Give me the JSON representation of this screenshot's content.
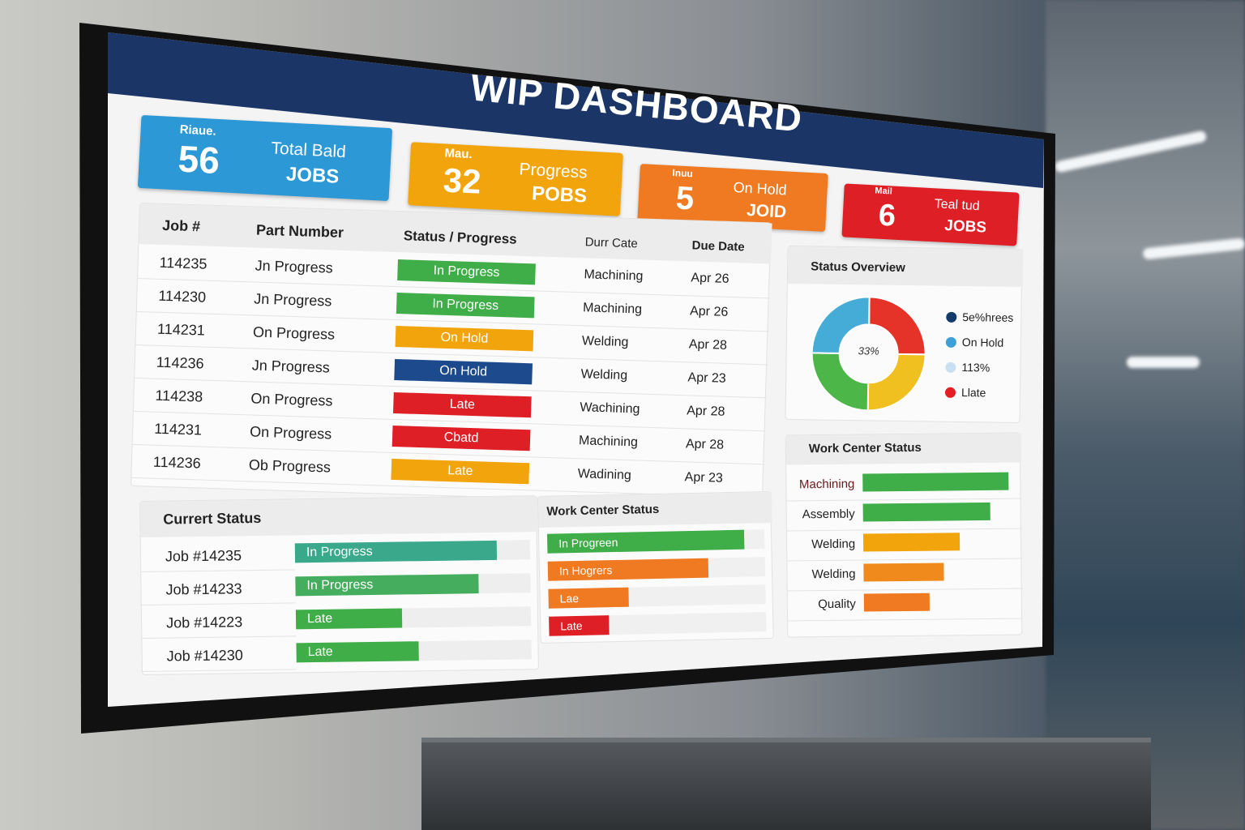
{
  "title": "WIP DASHBOARD",
  "kpis": [
    {
      "small": "Riaue.",
      "value": "56",
      "line1": "Total Bald",
      "line2": "JOBS",
      "color": "#2d98d6"
    },
    {
      "small": "Mau.",
      "value": "32",
      "line1": "Progress",
      "line2": "POBS",
      "color": "#f2a40c"
    },
    {
      "small": "Inuu",
      "value": "5",
      "line1": "On Hold",
      "line2": "JOID",
      "color": "#f07a22"
    },
    {
      "small": "Mail",
      "value": "6",
      "line1": "Teal tud",
      "line2": "JOBS",
      "color": "#df1f26"
    }
  ],
  "table": {
    "headers": [
      "Job #",
      "Part Number",
      "Status / Progress",
      "Durr Cate",
      "Due Date"
    ],
    "rows": [
      {
        "job": "114235",
        "part": "Jn Progress",
        "status": "In Progress",
        "color": "#3fae49",
        "center": "Machining",
        "due": "Apr 26"
      },
      {
        "job": "114230",
        "part": "Jn Progress",
        "status": "In Progress",
        "color": "#3fae49",
        "center": "Machining",
        "due": "Apr 26"
      },
      {
        "job": "114231",
        "part": "On Progress",
        "status": "On Hold",
        "color": "#f2a40c",
        "center": "Welding",
        "due": "Apr 28"
      },
      {
        "job": "114236",
        "part": "Jn Progress",
        "status": "On Hold",
        "color": "#1c4a8c",
        "center": "Welding",
        "due": "Apr 23"
      },
      {
        "job": "114238",
        "part": "On Progress",
        "status": "Late",
        "color": "#df1f26",
        "center": "Wachining",
        "due": "Apr 28"
      },
      {
        "job": "114231",
        "part": "On Progress",
        "status": "Cbatd",
        "color": "#df1f26",
        "center": "Machining",
        "due": "Apr 28"
      },
      {
        "job": "114236",
        "part": "Ob Progress",
        "status": "Late",
        "color": "#f2a40c",
        "center": "Wadining",
        "due": "Apr 23"
      }
    ]
  },
  "current_status": {
    "title": "Currert Status",
    "rows": [
      {
        "job": "Job #14235",
        "label": "In Progress",
        "color": "#3aa88a",
        "fill": 0.86
      },
      {
        "job": "Job #14233",
        "label": "In Progress",
        "color": "#45ad5e",
        "fill": 0.78
      },
      {
        "job": "Job #14223",
        "label": "Late",
        "color": "#3fae49",
        "fill": 0.45
      },
      {
        "job": "Job #14230",
        "label": "Late",
        "color": "#3fae49",
        "fill": 0.52
      }
    ]
  },
  "work_center_mid": {
    "title": "Work Center Status",
    "rows": [
      {
        "label": "In Progreen",
        "color": "#3fae49",
        "fill": 0.98
      },
      {
        "label": "In Hogrers",
        "color": "#f07a22",
        "fill": 0.8
      },
      {
        "label": "Lae",
        "color": "#f07a22",
        "fill": 0.4
      },
      {
        "label": "Late",
        "color": "#df1f26",
        "fill": 0.3
      }
    ]
  },
  "status_overview": {
    "title": "Status Overview",
    "center_label": "33%",
    "segments": [
      {
        "color": "#e63329",
        "value": 25
      },
      {
        "color": "#f0c020",
        "value": 25
      },
      {
        "color": "#4cb648",
        "value": 25
      },
      {
        "color": "#45acd8",
        "value": 25
      }
    ],
    "legend": [
      {
        "label": "5e%hrees",
        "color": "#123a6b"
      },
      {
        "label": "On Hold",
        "color": "#3d9fd8"
      },
      {
        "label": "113%",
        "color": "#c9e0f3"
      },
      {
        "label": "Llate",
        "color": "#e31e24"
      }
    ]
  },
  "work_center_right": {
    "title": "Work Center Status",
    "rows": [
      {
        "label": "Machining",
        "color": "#3fae49",
        "fill": 1.0
      },
      {
        "label": "Assembly",
        "color": "#3fae49",
        "fill": 0.87
      },
      {
        "label": "Welding",
        "color": "#f2a40c",
        "fill": 0.66
      },
      {
        "label": "Welding",
        "color": "#f08a1c",
        "fill": 0.55
      },
      {
        "label": "Quality",
        "color": "#f07a22",
        "fill": 0.45
      }
    ]
  }
}
